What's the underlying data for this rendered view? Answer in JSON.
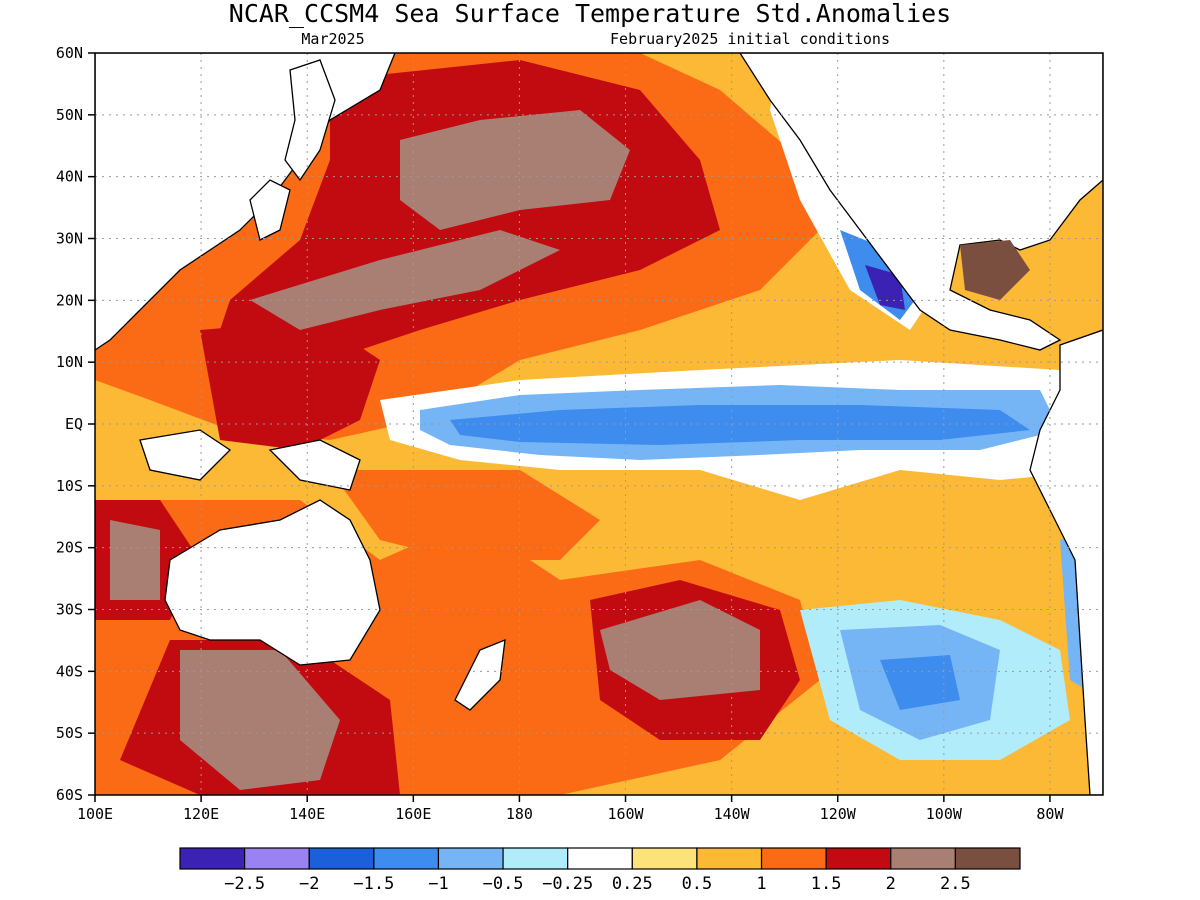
{
  "title": "NCAR_CCSM4 Sea Surface Temperature Std.Anomalies",
  "valid_month": "Mar2025",
  "init_label": "February2025 initial conditions",
  "axes": {
    "lat_labels": [
      "60N",
      "50N",
      "40N",
      "30N",
      "20N",
      "10N",
      "EQ",
      "10S",
      "20S",
      "30S",
      "40S",
      "50S",
      "60S"
    ],
    "lon_labels": [
      "100E",
      "120E",
      "140E",
      "160E",
      "180",
      "160W",
      "140W",
      "120W",
      "100W",
      "80W"
    ]
  },
  "colorbar": {
    "colors": [
      "#3b22b4",
      "#9a82f2",
      "#1c5fdb",
      "#3e8cee",
      "#76b5f5",
      "#b1ecfb",
      "#ffffff",
      "#fde27a",
      "#fbb935",
      "#fb6a14",
      "#c10b10",
      "#a97f74",
      "#7a4f40"
    ],
    "labels": [
      "−2.5",
      "−2",
      "−1.5",
      "−1",
      "−0.5",
      "−0.25",
      "0.25",
      "0.5",
      "1",
      "1.5",
      "2",
      "2.5"
    ]
  },
  "chart_data": {
    "type": "heatmap",
    "variable": "Sea Surface Temperature Std.Anomalies",
    "model": "NCAR_CCSM4",
    "valid": "Mar2025",
    "initial_conditions": "February2025",
    "lat_range": [
      -60,
      60
    ],
    "lon_range": [
      100,
      290
    ],
    "contour_levels": [
      -2.5,
      -2,
      -1.5,
      -1,
      -0.5,
      -0.25,
      0.25,
      0.5,
      1,
      1.5,
      2,
      2.5
    ],
    "features": [
      {
        "region": "equatorial central-eastern Pacific (175E-95W, 5S-3N)",
        "anomaly": -1
      },
      {
        "region": "off Baja California (115W-108W, 18N-27N)",
        "anomaly": -2
      },
      {
        "region": "North Pacific (150E-160W, 20N-50N)",
        "anomaly": 2
      },
      {
        "region": "South Pacific (170W-120W, 30S-50S)",
        "anomaly": 2
      },
      {
        "region": "Southeast Pacific (125W-90W, 30S-50S)",
        "anomaly": -1
      },
      {
        "region": "Southern Ocean south of Australia (115E-160E, 40S-60S)",
        "anomaly": 2.5
      },
      {
        "region": "Coral/Tasman Sea (150E-180, 10S-30S)",
        "anomaly": 1.5
      },
      {
        "region": "Gulf of Mexico",
        "anomaly": 2.5
      }
    ]
  }
}
